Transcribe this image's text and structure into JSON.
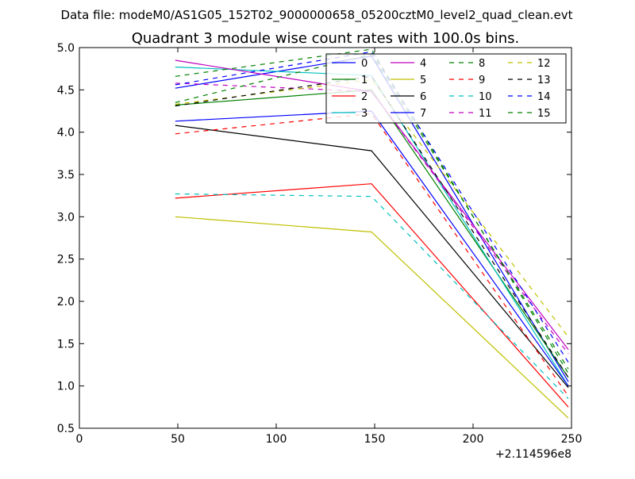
{
  "figure": {
    "suptitle": "Data file: modeM0/AS1G05_152T02_9000000658_05200cztM0_level2_quad_clean.evt",
    "title": "Quadrant 3 module wise count rates with 100.0s bins.",
    "x_offset_label": "+2.114596e8"
  },
  "chart_data": {
    "type": "line",
    "title": "Quadrant 3 module wise count rates with 100.0s bins.",
    "xlabel": "",
    "ylabel": "",
    "xlim": [
      0,
      250
    ],
    "ylim": [
      0.5,
      5.0
    ],
    "x_offset": "+2.114596e8",
    "xticks": [
      0,
      50,
      100,
      150,
      200,
      250
    ],
    "yticks": [
      0.5,
      1.0,
      1.5,
      2.0,
      2.5,
      3.0,
      3.5,
      4.0,
      4.5,
      5.0
    ],
    "xtick_labels": [
      "0",
      "50",
      "100",
      "150",
      "200",
      "250"
    ],
    "ytick_labels": [
      "0.5",
      "1.0",
      "1.5",
      "2.0",
      "2.5",
      "3.0",
      "3.5",
      "4.0",
      "4.5",
      "5.0"
    ],
    "legend_position": "top-right",
    "legend_columns": 4,
    "x": [
      48.7,
      148.4,
      248.4
    ],
    "series": [
      {
        "name": "0",
        "color": "#0000ff",
        "dash": "solid",
        "values": [
          4.52,
          4.9,
          1.05
        ]
      },
      {
        "name": "1",
        "color": "#008000",
        "dash": "solid",
        "values": [
          4.32,
          4.5,
          1.1
        ]
      },
      {
        "name": "2",
        "color": "#ff0000",
        "dash": "solid",
        "values": [
          3.22,
          3.39,
          0.75
        ]
      },
      {
        "name": "3",
        "color": "#00bfbf",
        "dash": "solid",
        "values": [
          4.77,
          4.67,
          1.0
        ]
      },
      {
        "name": "4",
        "color": "#bf00bf",
        "dash": "solid",
        "values": [
          4.85,
          4.48,
          1.43
        ]
      },
      {
        "name": "5",
        "color": "#bfbf00",
        "dash": "solid",
        "values": [
          3.0,
          2.82,
          0.62
        ]
      },
      {
        "name": "6",
        "color": "#000000",
        "dash": "solid",
        "values": [
          4.08,
          3.78,
          0.98
        ]
      },
      {
        "name": "7",
        "color": "#0000ff",
        "dash": "solid",
        "values": [
          4.13,
          4.25,
          1.0
        ]
      },
      {
        "name": "8",
        "color": "#008000",
        "dash": "dashed",
        "values": [
          4.66,
          4.98,
          1.15
        ]
      },
      {
        "name": "9",
        "color": "#ff0000",
        "dash": "dashed",
        "values": [
          3.98,
          4.22,
          0.88
        ]
      },
      {
        "name": "10",
        "color": "#00bfbf",
        "dash": "dashed",
        "values": [
          3.27,
          3.24,
          0.85
        ]
      },
      {
        "name": "11",
        "color": "#bf00bf",
        "dash": "dashed",
        "values": [
          4.58,
          4.48,
          1.38
        ]
      },
      {
        "name": "12",
        "color": "#bfbf00",
        "dash": "dashed",
        "values": [
          4.33,
          4.62,
          1.58
        ]
      },
      {
        "name": "13",
        "color": "#000000",
        "dash": "dashed",
        "values": [
          4.31,
          4.66,
          1.1
        ]
      },
      {
        "name": "14",
        "color": "#0000ff",
        "dash": "dashed",
        "values": [
          4.56,
          4.95,
          1.28
        ]
      },
      {
        "name": "15",
        "color": "#008000",
        "dash": "dashed",
        "values": [
          4.35,
          4.92,
          1.2
        ]
      }
    ]
  }
}
